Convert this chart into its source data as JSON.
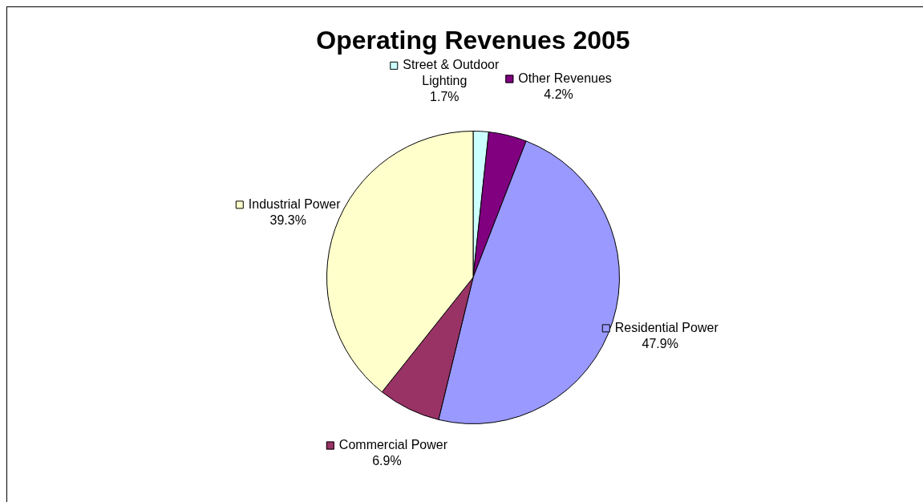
{
  "chart_data": {
    "type": "pie",
    "title": "Operating Revenues 2005",
    "categories": [
      "Street & Outdoor Lighting",
      "Other Revenues",
      "Residential Power",
      "Commercial Power",
      "Industrial Power"
    ],
    "values": [
      1.7,
      4.2,
      47.9,
      6.9,
      39.3
    ],
    "colors": [
      "#ccffff",
      "#800080",
      "#9999ff",
      "#993366",
      "#ffffcc"
    ],
    "value_labels": [
      "1.7%",
      "4.2%",
      "47.9%",
      "6.9%",
      "39.3%"
    ],
    "legend": "right"
  }
}
